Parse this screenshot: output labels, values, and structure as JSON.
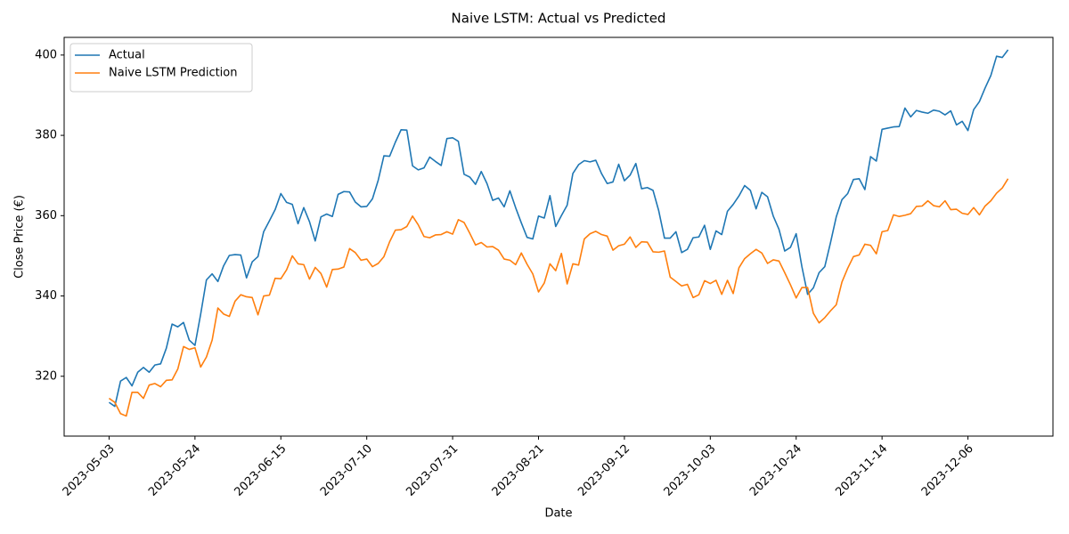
{
  "chart_data": {
    "type": "line",
    "title": "Naive LSTM: Actual vs Predicted",
    "xlabel": "Date",
    "ylabel": "Close Price (€)",
    "categories": [
      "2023-05-03",
      null,
      null,
      null,
      null,
      null,
      null,
      null,
      null,
      null,
      null,
      null,
      null,
      null,
      null,
      "2023-05-24",
      null,
      null,
      null,
      null,
      null,
      null,
      null,
      null,
      null,
      null,
      null,
      null,
      null,
      null,
      "2023-06-15",
      null,
      null,
      null,
      null,
      null,
      null,
      null,
      null,
      null,
      null,
      null,
      null,
      null,
      null,
      "2023-07-10",
      null,
      null,
      null,
      null,
      null,
      null,
      null,
      null,
      null,
      null,
      null,
      null,
      null,
      null,
      "2023-07-31",
      null,
      null,
      null,
      null,
      null,
      null,
      null,
      null,
      null,
      null,
      null,
      null,
      null,
      null,
      "2023-08-21",
      null,
      null,
      null,
      null,
      null,
      null,
      null,
      null,
      null,
      null,
      null,
      null,
      null,
      null,
      "2023-09-12",
      null,
      null,
      null,
      null,
      null,
      null,
      null,
      null,
      null,
      null,
      null,
      null,
      null,
      null,
      "2023-10-03",
      null,
      null,
      null,
      null,
      null,
      null,
      null,
      null,
      null,
      null,
      null,
      null,
      null,
      null,
      "2023-10-24",
      null,
      null,
      null,
      null,
      null,
      null,
      null,
      null,
      null,
      null,
      null,
      null,
      null,
      null,
      "2023-11-14",
      null,
      null,
      null,
      null,
      null,
      null,
      null,
      null,
      null,
      null,
      null,
      null,
      null,
      null,
      "2023-12-06",
      null,
      null,
      null,
      null,
      null,
      null,
      null
    ],
    "series": [
      {
        "name": "Actual",
        "color": "#1f77b4",
        "values": [
          313.5,
          312.5,
          318.8,
          319.7,
          317.6,
          321,
          322.2,
          321,
          322.8,
          323.1,
          327,
          333,
          332.3,
          333.4,
          329,
          327.7,
          335.5,
          344,
          345.5,
          343.6,
          347.5,
          350.1,
          350.3,
          350.2,
          344.5,
          348.5,
          349.8,
          356,
          358.7,
          361.5,
          365.5,
          363.3,
          362.8,
          358,
          362,
          358.5,
          353.7,
          359.7,
          360.4,
          359.8,
          365.3,
          366,
          365.9,
          363.4,
          362.2,
          362.3,
          364.2,
          368.8,
          374.9,
          374.8,
          378.3,
          381.4,
          381.3,
          372.4,
          371.4,
          371.9,
          374.6,
          373.5,
          372.5,
          379.2,
          379.4,
          378.5,
          370.3,
          369.6,
          367.8,
          371,
          368,
          363.8,
          364.4,
          362.2,
          366.2,
          362,
          358.2,
          354.6,
          354.2,
          359.9,
          359.4,
          365,
          357.3,
          360,
          362.6,
          370.5,
          372.7,
          373.7,
          373.4,
          373.8,
          370.5,
          368,
          368.4,
          372.8,
          368.7,
          370.1,
          373,
          366.7,
          367,
          366.3,
          361.2,
          354.4,
          354.4,
          356,
          350.8,
          351.6,
          354.5,
          354.7,
          357.6,
          351.6,
          356.2,
          355.3,
          361.1,
          362.8,
          364.9,
          367.5,
          366.3,
          361.7,
          365.8,
          364.7,
          359.9,
          356.6,
          351.2,
          352.1,
          355.5,
          347.3,
          340.4,
          342,
          345.8,
          347.3,
          353.3,
          359.7,
          364,
          365.5,
          369,
          369.2,
          366.5,
          374.7,
          373.6,
          381.5,
          381.8,
          382.1,
          382.2,
          386.8,
          384.6,
          386.2,
          385.8,
          385.5,
          386.3,
          386,
          385.1,
          386.1,
          382.6,
          383.5,
          381.2,
          386.4,
          388.4,
          391.8,
          394.9,
          399.7,
          399.4,
          401.3
        ]
      },
      {
        "name": "Naive LSTM Prediction",
        "color": "#ff7f0e",
        "values": [
          314.5,
          313.5,
          310.7,
          310.1,
          316,
          316,
          314.5,
          317.8,
          318.2,
          317.4,
          319,
          319.1,
          321.8,
          327.4,
          326.7,
          327.1,
          322.3,
          324.8,
          329,
          337,
          335.5,
          334.9,
          338.7,
          340.3,
          339.8,
          339.6,
          335.3,
          340,
          340.2,
          344.4,
          344.3,
          346.5,
          350,
          348,
          347.8,
          344.2,
          347.1,
          345.6,
          342.2,
          346.6,
          346.7,
          347.2,
          351.8,
          350.8,
          348.9,
          349.2,
          347.3,
          348.1,
          349.8,
          353.5,
          356.4,
          356.5,
          357.3,
          359.9,
          357.7,
          354.8,
          354.5,
          355.2,
          355.3,
          356,
          355.4,
          359,
          358.3,
          355.6,
          352.7,
          353.3,
          352.2,
          352.3,
          351.4,
          349.2,
          348.9,
          347.8,
          350.7,
          347.9,
          345.5,
          341,
          343.2,
          348,
          346.3,
          350.6,
          343,
          348,
          347.7,
          354.2,
          355.5,
          356.1,
          355.3,
          354.9,
          351.4,
          352.5,
          352.9,
          354.7,
          352.1,
          353.5,
          353.4,
          351,
          350.9,
          351.2,
          344.7,
          343.6,
          342.5,
          342.9,
          339.6,
          340.3,
          343.8,
          343.1,
          343.9,
          340.4,
          343.9,
          340.6,
          347,
          349.3,
          350.5,
          351.6,
          350.7,
          348.1,
          349,
          348.7,
          345.8,
          342.8,
          339.5,
          342.1,
          342.1,
          335.7,
          333.3,
          334.6,
          336.3,
          337.8,
          343.5,
          346.9,
          349.8,
          350.2,
          352.9,
          352.6,
          350.5,
          356,
          356.3,
          360.2,
          359.8,
          360.1,
          360.5,
          362.3,
          362.4,
          363.7,
          362.5,
          362.2,
          363.7,
          361.5,
          361.6,
          360.6,
          360.3,
          362,
          360.2,
          362.4,
          363.7,
          365.6,
          366.9,
          369.2
        ]
      }
    ],
    "ylim": [
      305.1,
      404.4
    ],
    "yticks": [
      320,
      340,
      360,
      380,
      400
    ],
    "legend": "upper left"
  }
}
